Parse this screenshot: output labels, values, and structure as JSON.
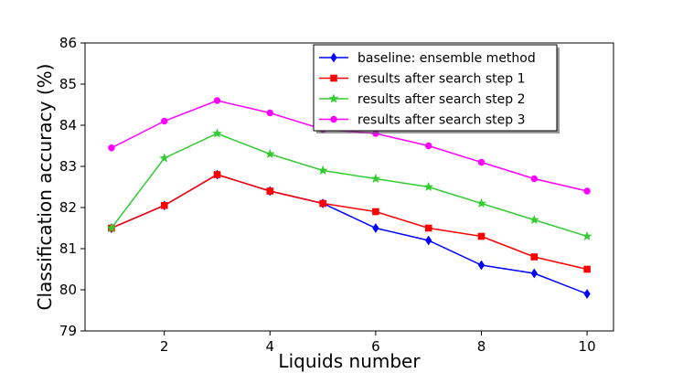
{
  "chart_data": {
    "type": "line",
    "xlabel": "Liquids number",
    "ylabel": "Classification accuracy (%)",
    "x": [
      1,
      2,
      3,
      4,
      5,
      6,
      7,
      8,
      9,
      10
    ],
    "xlim": [
      0.5,
      10.5
    ],
    "ylim": [
      79,
      86
    ],
    "xticks": [
      "2",
      "4",
      "6",
      "8",
      "10"
    ],
    "xtick_values": [
      2,
      4,
      6,
      8,
      10
    ],
    "yticks": [
      "79",
      "80",
      "81",
      "82",
      "83",
      "84",
      "85",
      "86"
    ],
    "ytick_values": [
      79,
      80,
      81,
      82,
      83,
      84,
      85,
      86
    ],
    "grid": false,
    "legend_position": "top-right",
    "series": [
      {
        "name": "baseline: ensemble method",
        "color": "#0000ff",
        "marker": "diamond",
        "values": [
          81.5,
          82.05,
          82.8,
          82.4,
          82.1,
          81.5,
          81.2,
          80.6,
          80.4,
          79.9
        ]
      },
      {
        "name": "results after search step 1",
        "color": "#ff0000",
        "marker": "square",
        "values": [
          81.5,
          82.05,
          82.8,
          82.4,
          82.1,
          81.9,
          81.5,
          81.3,
          80.8,
          80.5
        ]
      },
      {
        "name": "results after search step 2",
        "color": "#33cc33",
        "marker": "star",
        "values": [
          81.5,
          83.2,
          83.8,
          83.3,
          82.9,
          82.7,
          82.5,
          82.1,
          81.7,
          81.3
        ]
      },
      {
        "name": "results after search step 3",
        "color": "#ff00ff",
        "marker": "circle",
        "values": [
          83.45,
          84.1,
          84.6,
          84.3,
          83.9,
          83.8,
          83.5,
          83.1,
          82.7,
          82.4
        ]
      }
    ]
  }
}
